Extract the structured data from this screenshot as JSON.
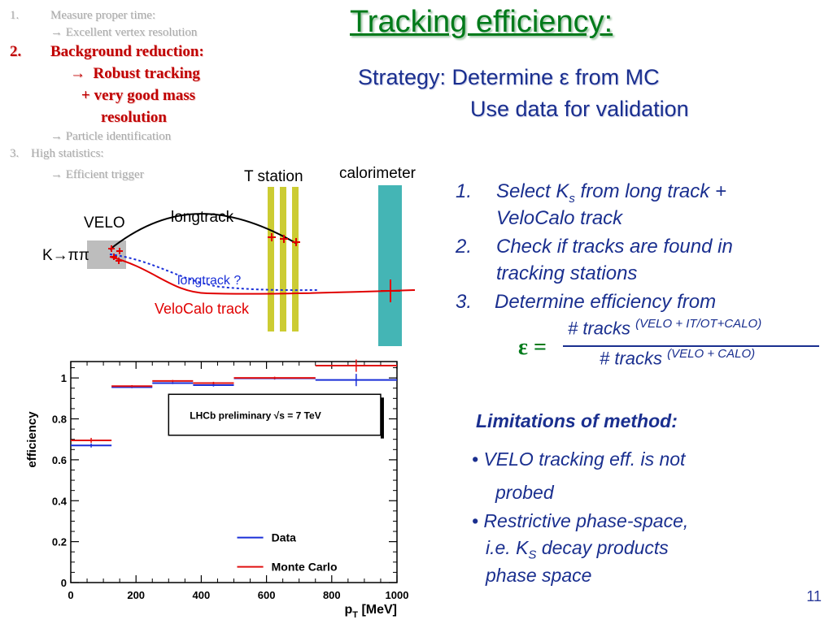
{
  "title": "Tracking efficiency:",
  "strategy": {
    "line1": "Strategy: Determine ε from MC",
    "line2": "Use data for validation"
  },
  "outline": {
    "item1": {
      "num": "1.",
      "text": "Measure proper time:",
      "sub": "Excellent vertex resolution"
    },
    "item2": {
      "num": "2.",
      "text": "Background reduction:",
      "sub1": "Robust tracking",
      "sub2": "+ very good mass",
      "sub3": "resolution",
      "sub4": "Particle identification"
    },
    "item3": {
      "num": "3.",
      "text": "High statistics:",
      "sub": "Efficient trigger"
    }
  },
  "arrow_glyph": "→",
  "diagram": {
    "velo": "VELO",
    "kdecay": "K→ππ",
    "longtrack": "longtrack",
    "longtrack_q": "longtrack ?",
    "velocalo": "VeloCalo track",
    "tstation": "T station",
    "calorimeter": "calorimeter",
    "colors": {
      "velo_box": "#bdbdbd",
      "tstation": "#cccc33",
      "calorimeter": "#44b5b5",
      "track_red": "#e00000",
      "track_black": "#000000",
      "track_blue": "#1a2fd8"
    }
  },
  "steps": {
    "s1_num": "1.",
    "s1_a": "Select K",
    "s1_sub": "s",
    "s1_b": " from long track +",
    "s1_c": "VeloCalo track",
    "s2_num": "2.",
    "s2_a": "Check if tracks are found in",
    "s2_b": "tracking stations",
    "s3_num": "3.",
    "s3_a": "Determine efficiency from"
  },
  "formula": {
    "eps": "ε =",
    "num": "# tracks",
    "num_sup": "(VELO + IT/OT+CALO)",
    "den": "# tracks",
    "den_sup": "(VELO + CALO)"
  },
  "limitations": {
    "heading": "Limitations of method:",
    "b1a": "• VELO tracking eff. is not",
    "b1b": "probed",
    "b2a": "• Restrictive phase-space,",
    "b2b_pre": "i.e. K",
    "b2b_sub": "S",
    "b2b_post": " decay products",
    "b2c": "phase space"
  },
  "slide_number": "11",
  "chart_data": {
    "type": "scatter",
    "xlabel": "p",
    "xlabel_sub": "T",
    "xlabel_unit": " [MeV]",
    "ylabel": "efficiency",
    "xlim": [
      0,
      1000
    ],
    "ylim": [
      0,
      1.08
    ],
    "xticks": [
      0,
      200,
      400,
      600,
      800,
      1000
    ],
    "yticks": [
      0,
      0.2,
      0.4,
      0.6,
      0.8,
      1
    ],
    "ytick_labels": [
      "0",
      "0.2",
      "0.4",
      "0.6",
      "0.8",
      "1"
    ],
    "annotation": "LHCb preliminary √s = 7 TeV",
    "legend_position": "bottom-right",
    "series": [
      {
        "name": "Data",
        "color": "#1a2fd8",
        "points": [
          {
            "x": 62.5,
            "xerr": 62.5,
            "y": 0.67,
            "yerr": 0.01
          },
          {
            "x": 187.5,
            "xerr": 62.5,
            "y": 0.955,
            "yerr": 0.005
          },
          {
            "x": 312.5,
            "xerr": 62.5,
            "y": 0.975,
            "yerr": 0.005
          },
          {
            "x": 437.5,
            "xerr": 62.5,
            "y": 0.965,
            "yerr": 0.007
          },
          {
            "x": 625,
            "xerr": 125,
            "y": 0.998,
            "yerr": 0.006
          },
          {
            "x": 875,
            "xerr": 125,
            "y": 0.99,
            "yerr": 0.03
          }
        ]
      },
      {
        "name": "Monte Carlo",
        "color": "#e01010",
        "points": [
          {
            "x": 62.5,
            "xerr": 62.5,
            "y": 0.695,
            "yerr": 0.012
          },
          {
            "x": 187.5,
            "xerr": 62.5,
            "y": 0.96,
            "yerr": 0.005
          },
          {
            "x": 312.5,
            "xerr": 62.5,
            "y": 0.985,
            "yerr": 0.005
          },
          {
            "x": 437.5,
            "xerr": 62.5,
            "y": 0.975,
            "yerr": 0.006
          },
          {
            "x": 625,
            "xerr": 125,
            "y": 1.0,
            "yerr": 0.006
          },
          {
            "x": 875,
            "xerr": 125,
            "y": 1.06,
            "yerr": 0.03
          }
        ]
      }
    ]
  }
}
